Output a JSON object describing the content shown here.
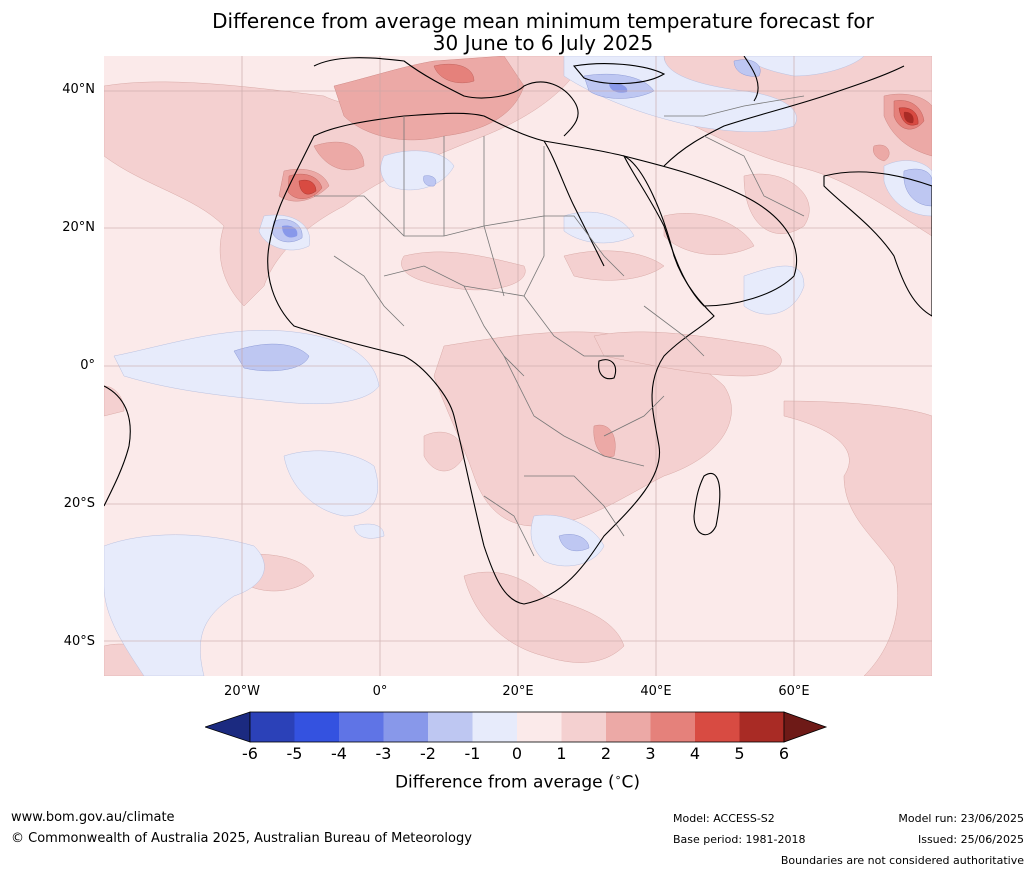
{
  "title": {
    "line1": "Difference from average mean minimum temperature forecast for",
    "line2": "30 June to 6 July 2025"
  },
  "axes": {
    "lat_labels": [
      "40°N",
      "20°N",
      "0°",
      "20°S",
      "40°S"
    ],
    "lon_labels": [
      "20°W",
      "0°",
      "20°E",
      "40°E",
      "60°E"
    ]
  },
  "colorbar": {
    "ticks": [
      "-6",
      "-5",
      "-4",
      "-3",
      "-2",
      "-1",
      "0",
      "1",
      "2",
      "3",
      "4",
      "5",
      "6"
    ],
    "colors": [
      "#1b2a80",
      "#2b41b8",
      "#3452e0",
      "#5f74e6",
      "#8898ea",
      "#bec7f2",
      "#e7ebfb",
      "#fbeaea",
      "#f4d0d0",
      "#eca9a6",
      "#e5817b",
      "#d84b42",
      "#a92b25",
      "#6e1a17"
    ],
    "label": "Difference from average ($^\\circ$C)"
  },
  "footer": {
    "website": "www.bom.gov.au/climate",
    "copyright": "© Commonwealth of Australia 2025, Australian Bureau of Meteorology",
    "model": "Model: ACCESS-S2",
    "base_period": "Base period: 1981-2018",
    "model_run": "Model run: 23/06/2025",
    "issued": "Issued: 25/06/2025",
    "boundaries": "Boundaries are not considered authoritative"
  }
}
